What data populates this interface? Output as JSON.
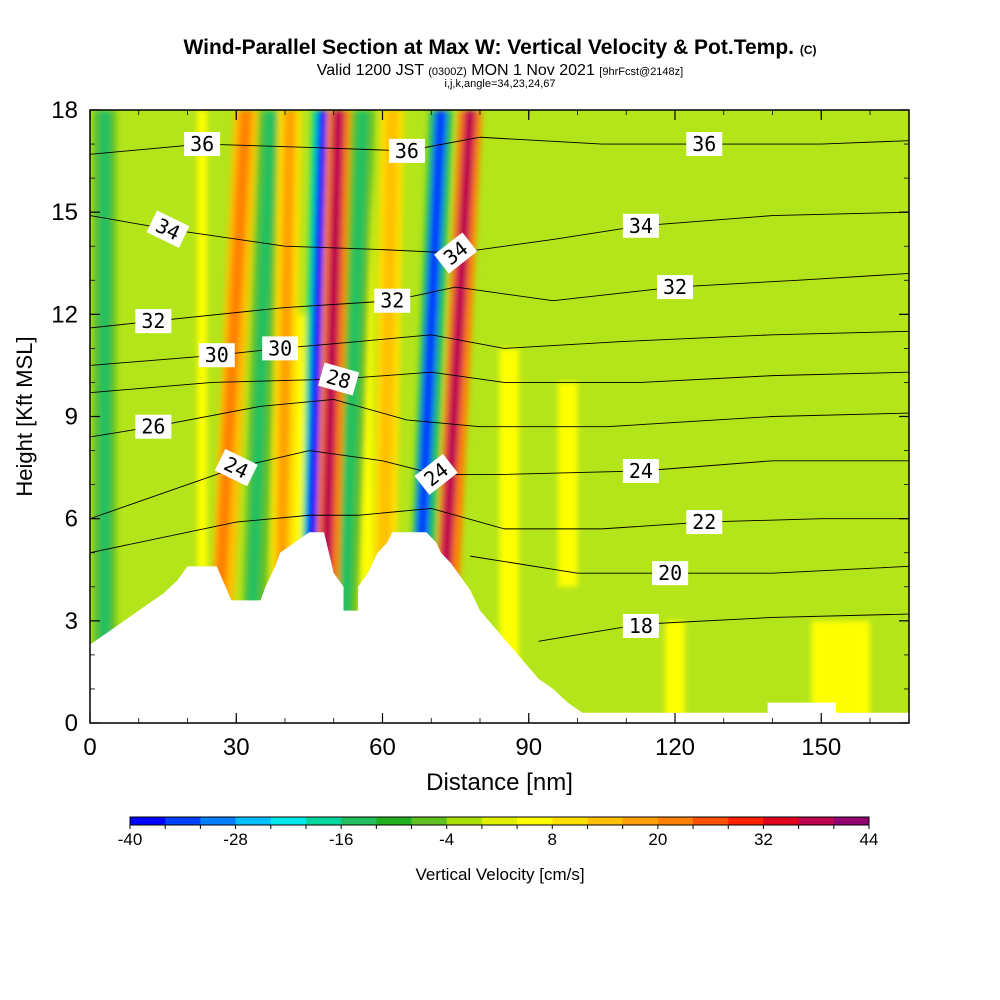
{
  "header": {
    "title": "Wind-Parallel Section at Max W: Vertical Velocity & Pot.Temp.",
    "title_mark": "(C)",
    "valid_prefix": "Valid 1200 JST",
    "valid_utc": "(0300Z)",
    "valid_date": "MON 1 Nov 2021",
    "forecast": "[9hrFcst@2148z]",
    "params": "i,j,k,angle=34,23,24,67"
  },
  "chart_data": {
    "type": "heatmap",
    "title": "Wind-Parallel Section at Max W: Vertical Velocity & Pot.Temp.",
    "xlabel": "Distance [nm]",
    "ylabel": "Height [Kft MSL]",
    "xlim": [
      0,
      168
    ],
    "ylim": [
      0,
      18
    ],
    "x_ticks": [
      0,
      30,
      60,
      90,
      120,
      150
    ],
    "y_ticks": [
      0,
      3,
      6,
      9,
      12,
      15,
      18
    ],
    "colorbar": {
      "label": "Vertical Velocity [cm/s]",
      "min": -40,
      "max": 44,
      "step": 4,
      "tick_values": [
        -40,
        -28,
        -16,
        -4,
        8,
        20,
        32,
        44
      ],
      "colors": [
        "#0000ff",
        "#0040ff",
        "#0080ff",
        "#00c0ff",
        "#00e8e8",
        "#00d8a0",
        "#20c060",
        "#20b020",
        "#60c020",
        "#a8e000",
        "#e0f000",
        "#ffff00",
        "#ffe000",
        "#ffc000",
        "#ffa000",
        "#ff8000",
        "#ff5000",
        "#ff2000",
        "#e00020",
        "#c00050",
        "#900070"
      ]
    },
    "updraft_bands": [
      {
        "x_bottom": 48,
        "x_top": 51,
        "peak_cm_s": 36
      },
      {
        "x_bottom": 72,
        "x_top": 78,
        "peak_cm_s": 36
      },
      {
        "x_bottom": 26,
        "x_top": 32,
        "peak_cm_s": 20
      },
      {
        "x_bottom": 39,
        "x_top": 41,
        "peak_cm_s": 16
      },
      {
        "x_bottom": 60,
        "x_top": 62,
        "peak_cm_s": 12
      }
    ],
    "downdraft_bands": [
      {
        "x_bottom": 45,
        "x_top": 48,
        "min_cm_s": -40
      },
      {
        "x_bottom": 67,
        "x_top": 72,
        "min_cm_s": -36
      },
      {
        "x_bottom": 3,
        "x_top": 3,
        "min_cm_s": -16
      },
      {
        "x_bottom": 33,
        "x_top": 37,
        "min_cm_s": -16
      },
      {
        "x_bottom": 52,
        "x_top": 56,
        "min_cm_s": -16
      }
    ],
    "terrain": [
      {
        "x": 0,
        "h": 2.3
      },
      {
        "x": 3,
        "h": 2.6
      },
      {
        "x": 6,
        "h": 2.9
      },
      {
        "x": 9,
        "h": 3.2
      },
      {
        "x": 12,
        "h": 3.5
      },
      {
        "x": 15,
        "h": 3.8
      },
      {
        "x": 18,
        "h": 4.2
      },
      {
        "x": 20,
        "h": 4.6
      },
      {
        "x": 26,
        "h": 4.6
      },
      {
        "x": 29,
        "h": 3.6
      },
      {
        "x": 35,
        "h": 3.6
      },
      {
        "x": 36,
        "h": 4.0
      },
      {
        "x": 38,
        "h": 4.6
      },
      {
        "x": 39,
        "h": 5.0
      },
      {
        "x": 42,
        "h": 5.3
      },
      {
        "x": 45,
        "h": 5.6
      },
      {
        "x": 48,
        "h": 5.6
      },
      {
        "x": 50,
        "h": 4.4
      },
      {
        "x": 52,
        "h": 4.0
      },
      {
        "x": 52,
        "h": 3.3
      },
      {
        "x": 55,
        "h": 3.3
      },
      {
        "x": 55,
        "h": 4.0
      },
      {
        "x": 57,
        "h": 4.4
      },
      {
        "x": 59,
        "h": 5.0
      },
      {
        "x": 61,
        "h": 5.3
      },
      {
        "x": 62,
        "h": 5.6
      },
      {
        "x": 69,
        "h": 5.6
      },
      {
        "x": 71,
        "h": 5.3
      },
      {
        "x": 72,
        "h": 5.0
      },
      {
        "x": 74,
        "h": 4.7
      },
      {
        "x": 76,
        "h": 4.3
      },
      {
        "x": 78,
        "h": 3.9
      },
      {
        "x": 80,
        "h": 3.3
      },
      {
        "x": 83,
        "h": 2.8
      },
      {
        "x": 86,
        "h": 2.3
      },
      {
        "x": 89,
        "h": 1.8
      },
      {
        "x": 92,
        "h": 1.3
      },
      {
        "x": 95,
        "h": 1.0
      },
      {
        "x": 98,
        "h": 0.6
      },
      {
        "x": 101,
        "h": 0.3
      },
      {
        "x": 139,
        "h": 0.3
      },
      {
        "x": 139,
        "h": 0.6
      },
      {
        "x": 153,
        "h": 0.6
      },
      {
        "x": 153,
        "h": 0.3
      },
      {
        "x": 168,
        "h": 0.3
      }
    ],
    "theta_contours": [
      {
        "value": 18,
        "label": "18",
        "label_at": [
          113,
          2.85
        ],
        "pts": [
          [
            92,
            2.4
          ],
          [
            113,
            2.9
          ],
          [
            140,
            3.1
          ],
          [
            168,
            3.2
          ]
        ]
      },
      {
        "value": 20,
        "label": "20",
        "label_at": [
          119,
          4.4
        ],
        "pts": [
          [
            78,
            4.9
          ],
          [
            100,
            4.4
          ],
          [
            119,
            4.4
          ],
          [
            140,
            4.4
          ],
          [
            168,
            4.6
          ]
        ]
      },
      {
        "value": 22,
        "label": "22",
        "label_at": [
          126,
          5.9
        ],
        "pts": [
          [
            0,
            5.0
          ],
          [
            30,
            5.9
          ],
          [
            45,
            6.1
          ],
          [
            55,
            6.1
          ],
          [
            70,
            6.3
          ],
          [
            85,
            5.7
          ],
          [
            105,
            5.7
          ],
          [
            126,
            5.9
          ],
          [
            150,
            6.0
          ],
          [
            168,
            6.0
          ]
        ]
      },
      {
        "value": 24,
        "label": "24",
        "label_at": [
          113,
          7.4
        ],
        "rot_a": 0,
        "label2": "24",
        "label2_at": [
          30,
          7.5
        ],
        "rot_b": 26,
        "label3": "24",
        "label3_at": [
          71,
          7.3
        ],
        "rot_c": -38,
        "pts": [
          [
            0,
            6.0
          ],
          [
            30,
            7.5
          ],
          [
            45,
            8.0
          ],
          [
            60,
            7.7
          ],
          [
            71,
            7.3
          ],
          [
            85,
            7.3
          ],
          [
            113,
            7.4
          ],
          [
            140,
            7.7
          ],
          [
            168,
            7.7
          ]
        ]
      },
      {
        "value": 26,
        "label": "26",
        "label_at": [
          13,
          8.7
        ],
        "pts": [
          [
            0,
            8.4
          ],
          [
            13,
            8.7
          ],
          [
            35,
            9.3
          ],
          [
            50,
            9.5
          ],
          [
            65,
            8.9
          ],
          [
            80,
            8.7
          ],
          [
            106,
            8.7
          ],
          [
            140,
            9.0
          ],
          [
            168,
            9.1
          ]
        ]
      },
      {
        "value": 28,
        "label": "28",
        "label_at": [
          51,
          10.1
        ],
        "rot": 16,
        "pts": [
          [
            0,
            9.7
          ],
          [
            25,
            10.0
          ],
          [
            51,
            10.1
          ],
          [
            70,
            10.3
          ],
          [
            85,
            10.0
          ],
          [
            113,
            10.0
          ],
          [
            140,
            10.2
          ],
          [
            168,
            10.3
          ]
        ]
      },
      {
        "value": 30,
        "label": "30",
        "label_at": [
          26,
          10.8
        ],
        "label2": "30",
        "label2_at": [
          39,
          11.0
        ],
        "pts": [
          [
            0,
            10.5
          ],
          [
            26,
            10.8
          ],
          [
            39,
            11.0
          ],
          [
            55,
            11.2
          ],
          [
            70,
            11.4
          ],
          [
            85,
            11.0
          ],
          [
            109,
            11.2
          ],
          [
            140,
            11.4
          ],
          [
            168,
            11.5
          ]
        ]
      },
      {
        "value": 32,
        "label": "32",
        "label_at": [
          13,
          11.8
        ],
        "label2": "32",
        "label2_at": [
          62,
          12.4
        ],
        "label3": "32",
        "label3_at": [
          120,
          12.8
        ],
        "pts": [
          [
            0,
            11.6
          ],
          [
            13,
            11.8
          ],
          [
            40,
            12.2
          ],
          [
            62,
            12.4
          ],
          [
            75,
            12.8
          ],
          [
            95,
            12.4
          ],
          [
            120,
            12.8
          ],
          [
            145,
            13.0
          ],
          [
            168,
            13.2
          ]
        ]
      },
      {
        "value": 34,
        "label": "34",
        "label_at": [
          16,
          14.5
        ],
        "rot": 26,
        "label2": "34",
        "label2_at": [
          75,
          13.8
        ],
        "rot2": -38,
        "label3": "34",
        "label3_at": [
          113,
          14.6
        ],
        "pts": [
          [
            0,
            14.9
          ],
          [
            16,
            14.5
          ],
          [
            40,
            14.0
          ],
          [
            60,
            13.9
          ],
          [
            75,
            13.8
          ],
          [
            95,
            14.2
          ],
          [
            113,
            14.6
          ],
          [
            140,
            14.9
          ],
          [
            168,
            15.0
          ]
        ]
      },
      {
        "value": 36,
        "label": "36",
        "label_at": [
          23,
          17.0
        ],
        "label2": "36",
        "label2_at": [
          65,
          16.8
        ],
        "label3": "36",
        "label3_at": [
          126,
          17.0
        ],
        "pts": [
          [
            0,
            16.7
          ],
          [
            23,
            17.0
          ],
          [
            45,
            16.9
          ],
          [
            65,
            16.8
          ],
          [
            80,
            17.2
          ],
          [
            105,
            17.0
          ],
          [
            126,
            17.0
          ],
          [
            150,
            17.0
          ],
          [
            168,
            17.1
          ]
        ]
      }
    ]
  }
}
